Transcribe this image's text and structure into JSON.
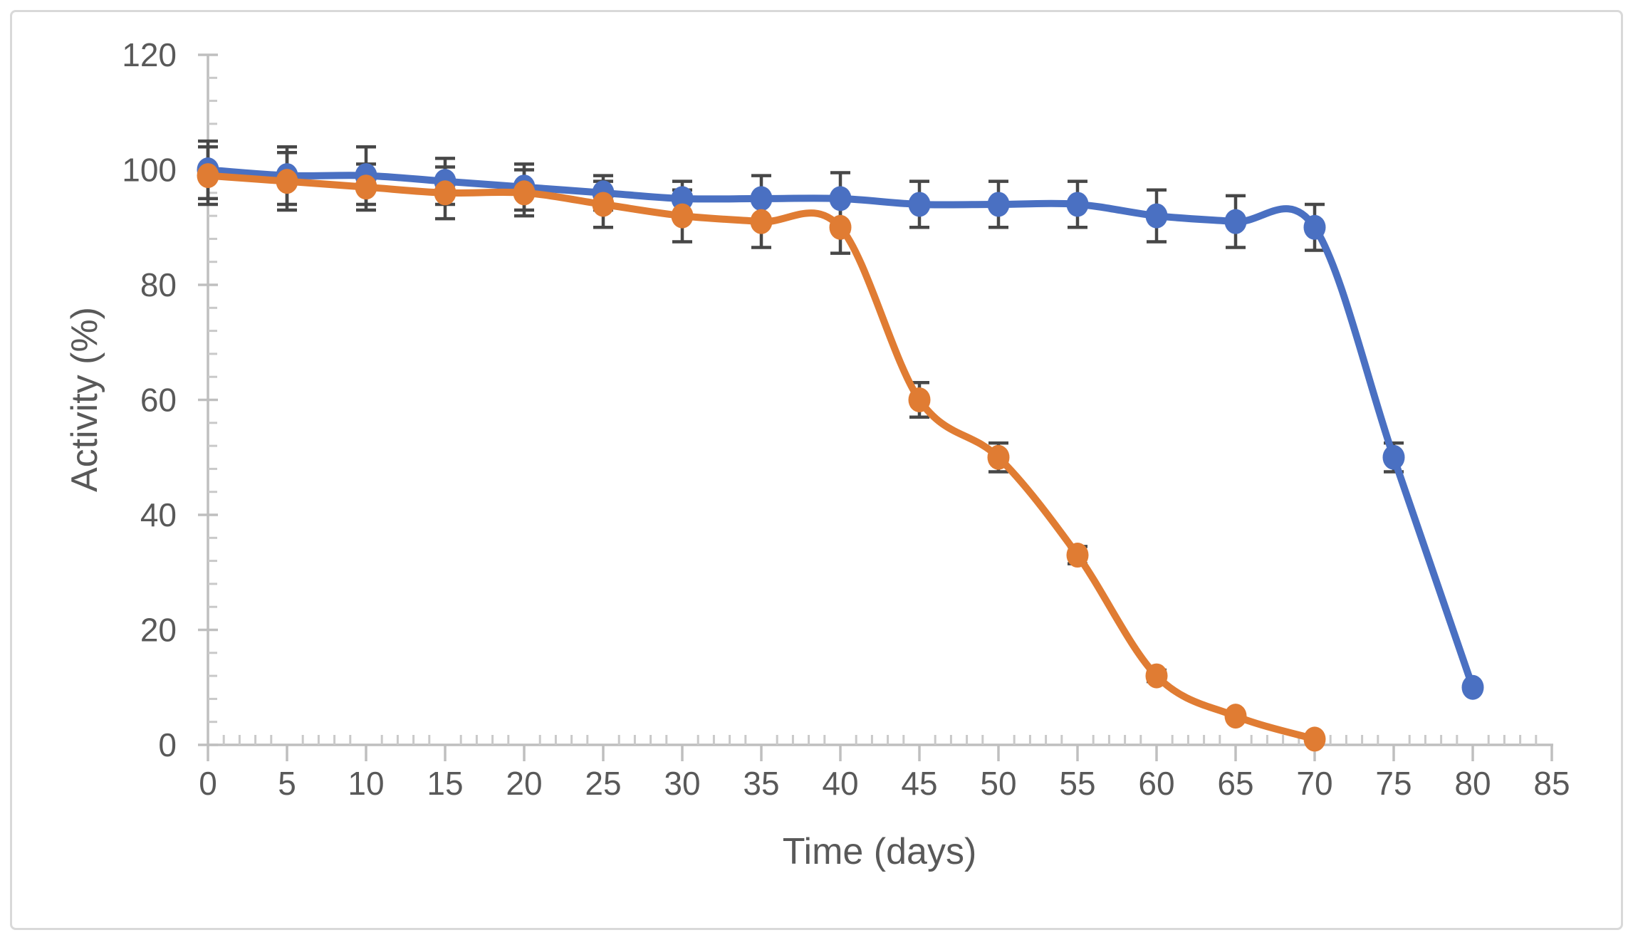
{
  "chart_data": {
    "type": "line",
    "title": "",
    "xlabel": "Time (days)",
    "ylabel": "Activity (%)",
    "xlim": [
      0,
      85
    ],
    "ylim": [
      0,
      120
    ],
    "x_ticks": [
      0,
      5,
      10,
      15,
      20,
      25,
      30,
      35,
      40,
      45,
      50,
      55,
      60,
      65,
      70,
      75,
      80,
      85
    ],
    "x_minor_step": 1,
    "y_ticks": [
      0,
      20,
      40,
      60,
      80,
      100,
      120
    ],
    "y_minor_step": 4,
    "grid": "off",
    "legend": "none",
    "smooth": true,
    "series": [
      {
        "name": "series-blue",
        "color": "#4A70C2",
        "x": [
          0,
          5,
          10,
          15,
          20,
          25,
          30,
          35,
          40,
          45,
          50,
          55,
          60,
          65,
          70,
          75,
          80
        ],
        "values": [
          100,
          99,
          99,
          98,
          97,
          96,
          95,
          95,
          95,
          94,
          94,
          94,
          92,
          91,
          90,
          50,
          10
        ],
        "errors": [
          5,
          5,
          5,
          4,
          4,
          3,
          3,
          4,
          4.5,
          4,
          4,
          4,
          4.5,
          4.5,
          4,
          2.5,
          0
        ]
      },
      {
        "name": "series-orange",
        "color": "#E07C33",
        "x": [
          0,
          5,
          10,
          15,
          20,
          25,
          30,
          35,
          40,
          45,
          50,
          55,
          60,
          65,
          70
        ],
        "values": [
          99,
          98,
          97,
          96,
          96,
          94,
          92,
          91,
          90,
          60,
          50,
          33,
          12,
          5,
          1
        ],
        "errors": [
          5,
          5,
          4,
          4.5,
          4,
          4,
          4.5,
          4.5,
          4.5,
          3,
          2.5,
          1.5,
          1,
          0,
          0
        ]
      }
    ],
    "error_bar_color": "#474747",
    "axis_color": "#BFBFBF",
    "minor_tick_color": "#C9C9C9",
    "tick_label_color": "#595959",
    "axis_title_color": "#595959"
  },
  "frame": {
    "border_color": "#D9D9D9"
  }
}
